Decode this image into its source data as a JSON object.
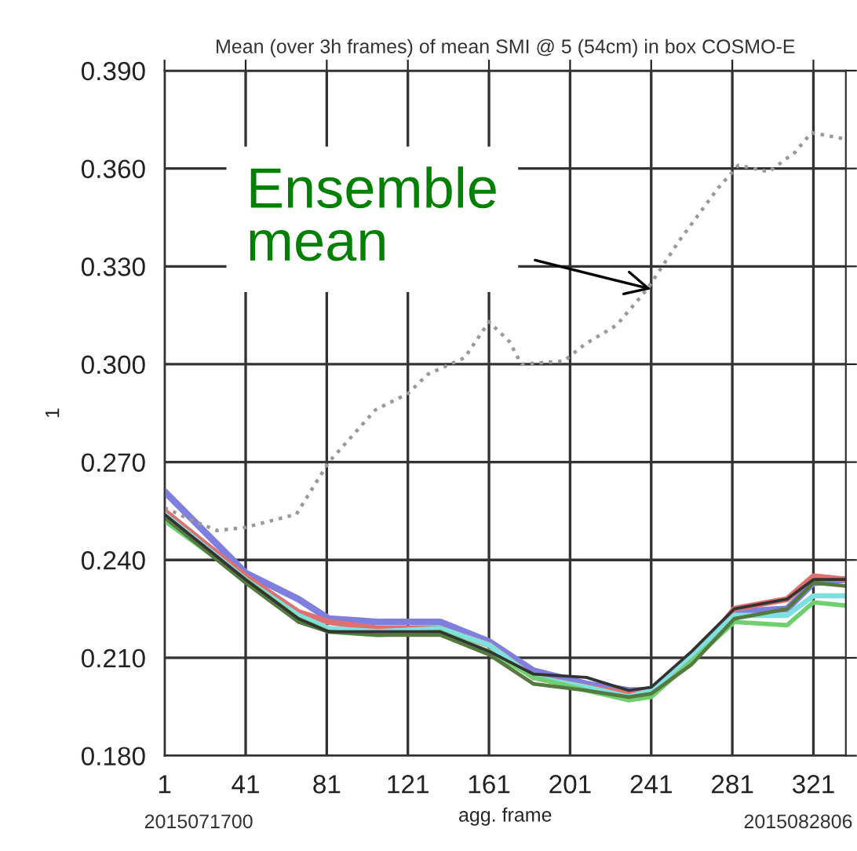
{
  "chart_data": {
    "type": "line",
    "title": "Mean (over 3h frames) of mean SMI @ 5 (54cm) in box COSMO-E",
    "xlabel": "agg. frame",
    "ylabel": "1",
    "x": [
      1,
      41,
      67,
      82,
      106,
      137,
      161,
      183,
      209,
      230,
      241,
      261,
      282,
      308,
      321,
      337
    ],
    "series": [
      {
        "color": "#7f7fe0",
        "values": [
          0.261,
          0.236,
          0.228,
          0.222,
          0.221,
          0.221,
          0.215,
          0.206,
          0.202,
          0.2,
          0.2,
          0.211,
          0.224,
          0.225,
          0.233,
          0.234
        ]
      },
      {
        "color": "#e07070",
        "values": [
          0.255,
          0.235,
          0.224,
          0.221,
          0.219,
          0.219,
          0.214,
          0.204,
          0.201,
          0.199,
          0.2,
          0.209,
          0.225,
          0.228,
          0.235,
          0.234
        ]
      },
      {
        "color": "#7fe0e0",
        "values": [
          0.254,
          0.234,
          0.223,
          0.219,
          0.218,
          0.219,
          0.214,
          0.204,
          0.201,
          0.198,
          0.2,
          0.211,
          0.223,
          0.223,
          0.229,
          0.229
        ]
      },
      {
        "color": "#70d070",
        "values": [
          0.252,
          0.234,
          0.222,
          0.218,
          0.217,
          0.218,
          0.212,
          0.204,
          0.2,
          0.197,
          0.198,
          0.209,
          0.221,
          0.22,
          0.227,
          0.226
        ]
      },
      {
        "color": "#557a40",
        "values": [
          0.253,
          0.233,
          0.221,
          0.218,
          0.217,
          0.217,
          0.211,
          0.202,
          0.2,
          0.198,
          0.199,
          0.208,
          0.222,
          0.225,
          0.233,
          0.232
        ]
      },
      {
        "color": "#333333",
        "values": [
          0.254,
          0.234,
          0.222,
          0.218,
          0.218,
          0.218,
          0.212,
          0.205,
          0.204,
          0.2,
          0.201,
          0.212,
          0.225,
          0.228,
          0.234,
          0.234
        ]
      },
      {
        "color": "#999999",
        "line_style": "dotted",
        "x": [
          1,
          15,
          27,
          41,
          66,
          82,
          105,
          121,
          131,
          149,
          161,
          171,
          177,
          198,
          208,
          224,
          239,
          255,
          274,
          284,
          299,
          312,
          320,
          337
        ],
        "values": [
          0.256,
          0.252,
          0.249,
          0.25,
          0.254,
          0.27,
          0.286,
          0.291,
          0.297,
          0.302,
          0.313,
          0.307,
          0.3,
          0.301,
          0.306,
          0.312,
          0.323,
          0.338,
          0.354,
          0.361,
          0.359,
          0.365,
          0.371,
          0.369
        ]
      }
    ],
    "xlim": [
      1,
      337
    ],
    "xticks": [
      1,
      41,
      81,
      121,
      161,
      201,
      241,
      281,
      321
    ],
    "ylim": [
      0.18,
      0.39
    ],
    "yticks": [
      {
        "value": 0.18,
        "label": "0.180"
      },
      {
        "value": 0.21,
        "label": "0.210"
      },
      {
        "value": 0.24,
        "label": "0.240"
      },
      {
        "value": 0.27,
        "label": "0.270"
      },
      {
        "value": 0.3,
        "label": "0.300"
      },
      {
        "value": 0.33,
        "label": "0.330"
      },
      {
        "value": 0.36,
        "label": "0.360"
      },
      {
        "value": 0.39,
        "label": "0.390"
      }
    ],
    "grid": true,
    "line_style": "solid",
    "marker": "none",
    "annotations": [
      {
        "text": "Ensemble\nmean",
        "x": 241,
        "y": 0.323
      },
      "2015071700",
      "2015082806"
    ]
  }
}
